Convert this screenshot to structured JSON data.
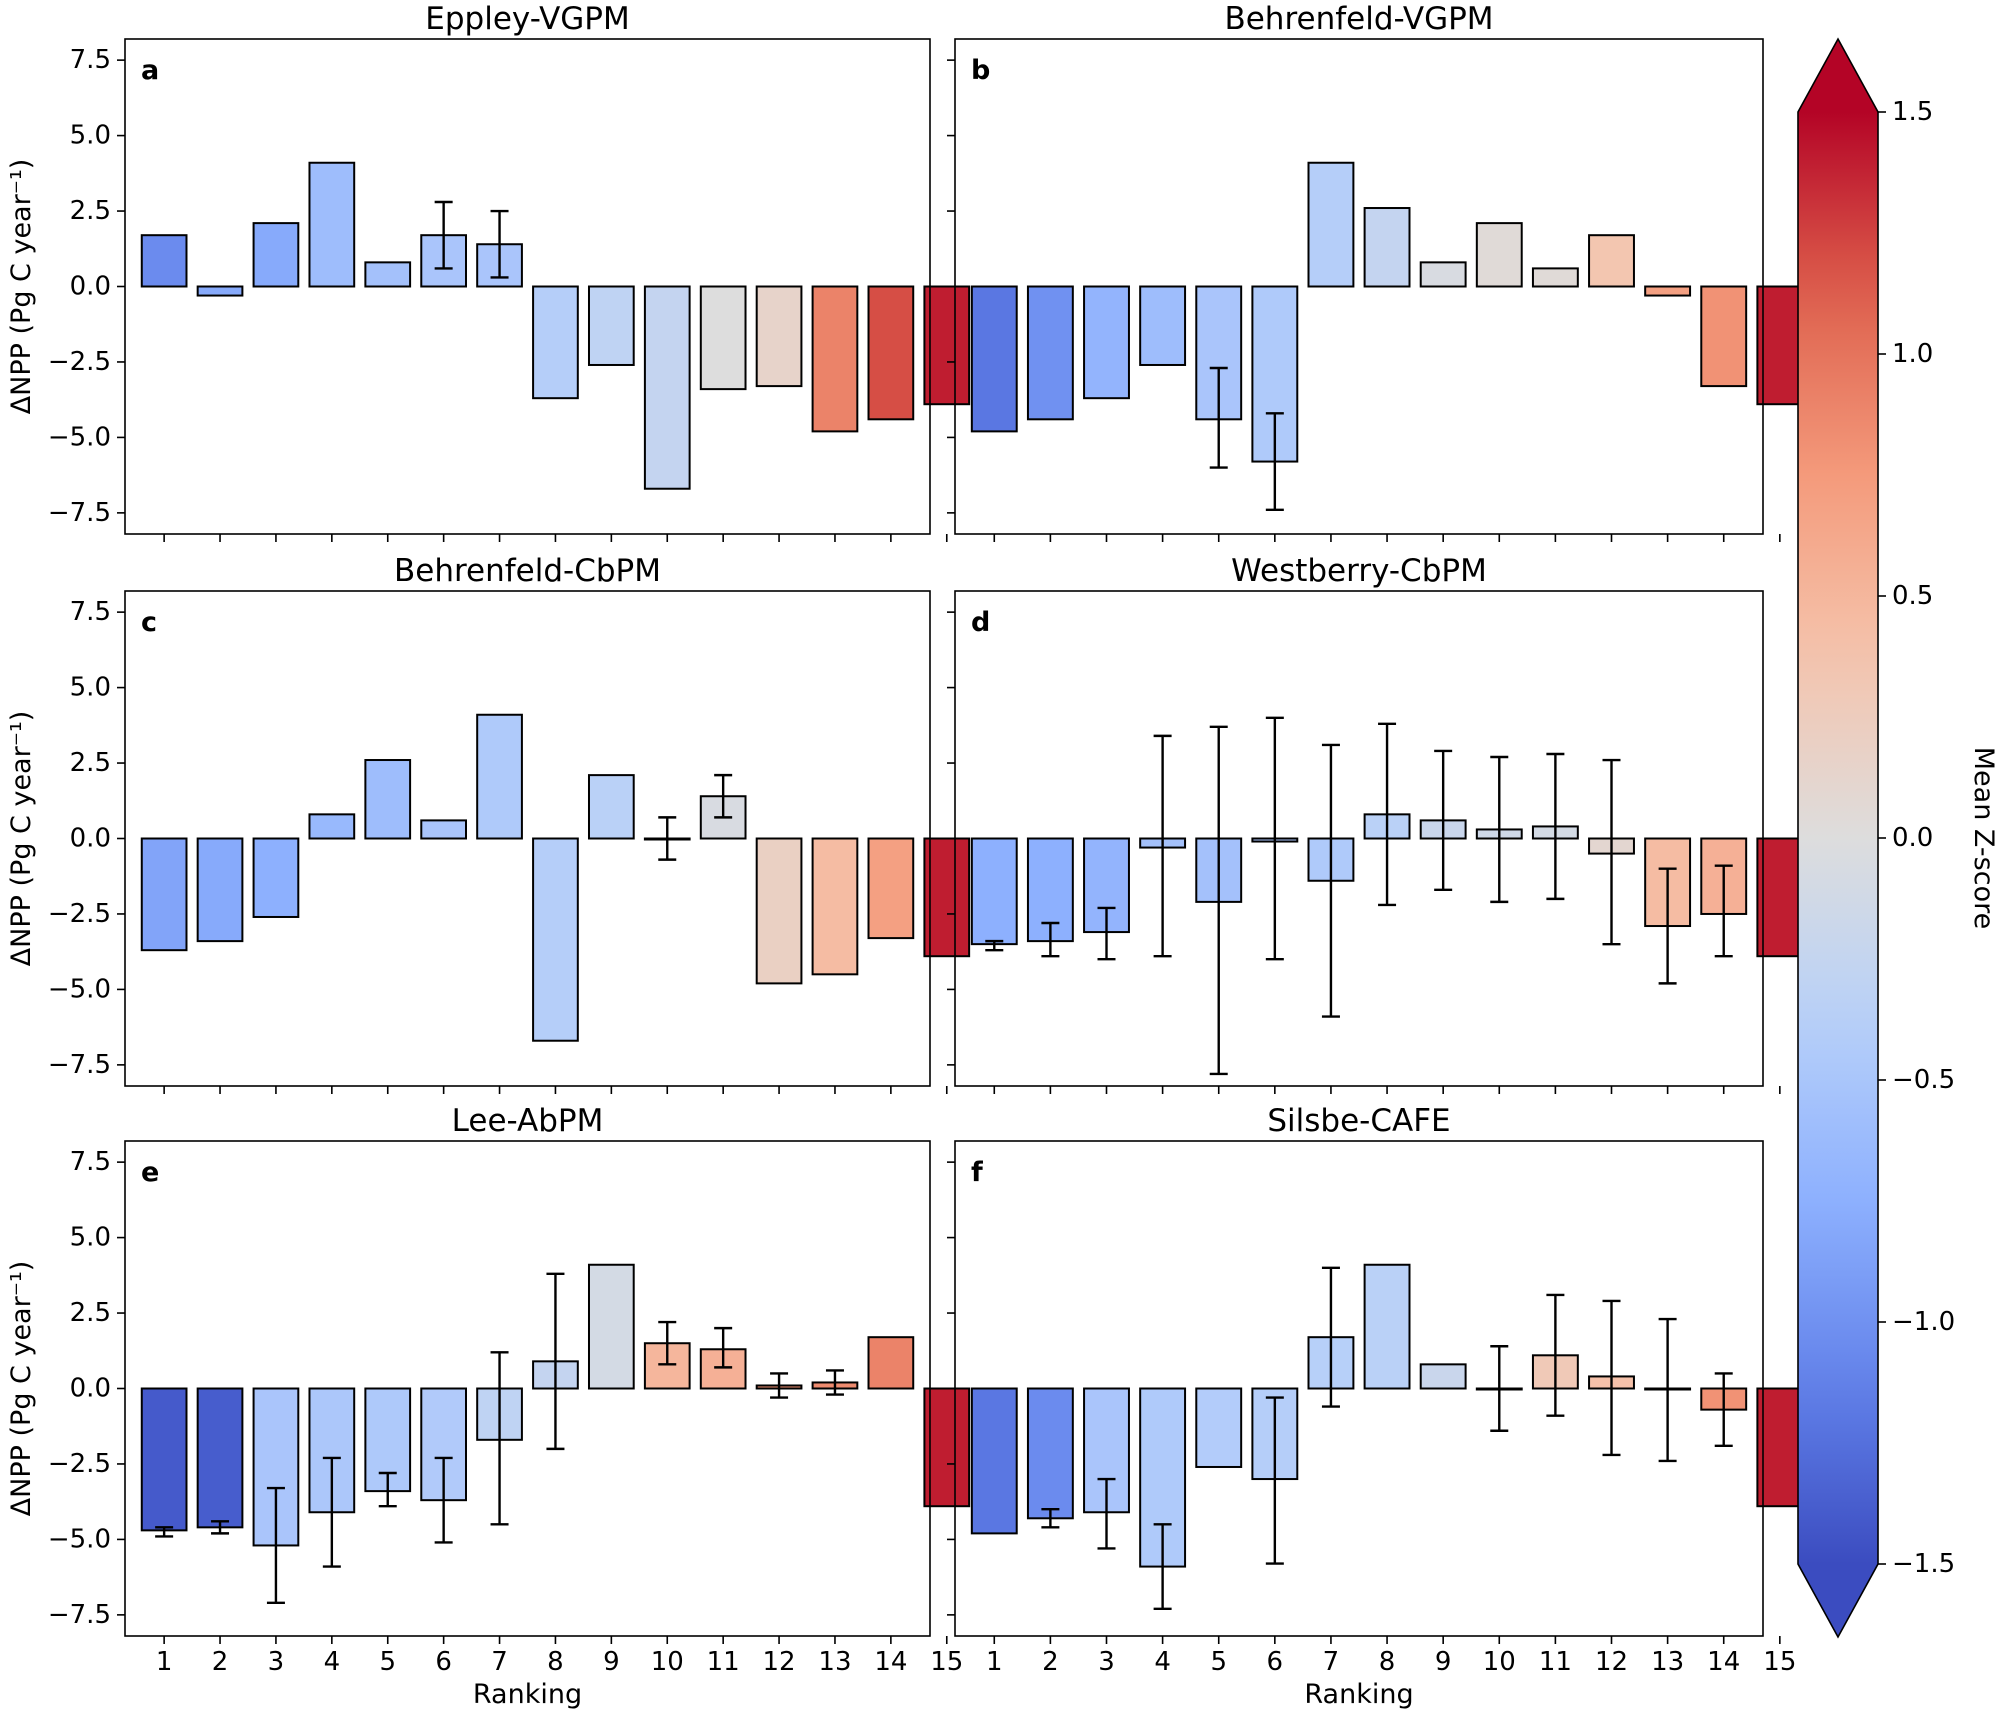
{
  "figure": {
    "colorbar": {
      "label": "Mean Z-score",
      "range": [
        -1.5,
        1.5
      ],
      "ticks": [
        "1.5",
        "1.0",
        "0.5",
        "0.0",
        "−0.5",
        "−1.0",
        "−1.5"
      ],
      "tick_values": [
        1.5,
        1.0,
        0.5,
        0.0,
        -0.5,
        -1.0,
        -1.5
      ],
      "extend": "both",
      "colormap": "coolwarm"
    }
  },
  "chart_data": [
    {
      "type": "bar",
      "panel": "a",
      "title": "Eppley-VGPM",
      "xlabel": "",
      "ylabel": "ΔNPP (Pg C year⁻¹)",
      "categories": [
        "1",
        "2",
        "3",
        "4",
        "5",
        "6",
        "7",
        "8",
        "9",
        "10",
        "11",
        "12",
        "13",
        "14",
        "15"
      ],
      "values": [
        1.7,
        -0.3,
        2.1,
        4.1,
        0.8,
        1.7,
        1.4,
        -3.7,
        -2.6,
        -6.7,
        -3.4,
        -3.3,
        -4.8,
        -4.4,
        -3.9
      ],
      "zscores": [
        -1.05,
        -0.8,
        -0.8,
        -0.6,
        -0.55,
        -0.5,
        -0.5,
        -0.4,
        -0.3,
        -0.25,
        0.0,
        0.15,
        0.9,
        1.2,
        1.4
      ],
      "error_bars": [
        null,
        null,
        null,
        null,
        null,
        [
          0.6,
          2.8
        ],
        [
          0.3,
          2.5
        ],
        null,
        null,
        null,
        null,
        null,
        null,
        null,
        null
      ],
      "ylim": [
        -8.2,
        8.2
      ],
      "yticks": [
        -7.5,
        -5.0,
        -2.5,
        0.0,
        2.5,
        5.0,
        7.5
      ],
      "ytick_labels": [
        "−7.5",
        "−5.0",
        "−2.5",
        "0.0",
        "2.5",
        "5.0",
        "7.5"
      ],
      "xtick_labels": [],
      "show_yticklabels": true
    },
    {
      "type": "bar",
      "panel": "b",
      "title": "Behrenfeld-VGPM",
      "xlabel": "",
      "ylabel": "",
      "categories": [
        "1",
        "2",
        "3",
        "4",
        "5",
        "6",
        "7",
        "8",
        "9",
        "10",
        "11",
        "12",
        "13",
        "14",
        "15"
      ],
      "values": [
        -4.8,
        -4.4,
        -3.7,
        -2.6,
        -4.4,
        -5.8,
        4.1,
        2.6,
        0.8,
        2.1,
        0.6,
        1.7,
        -0.3,
        -3.3,
        -3.9
      ],
      "zscores": [
        -1.2,
        -1.0,
        -0.7,
        -0.6,
        -0.5,
        -0.45,
        -0.4,
        -0.25,
        -0.05,
        0.05,
        0.05,
        0.35,
        0.7,
        0.8,
        1.4
      ],
      "error_bars": [
        null,
        null,
        null,
        null,
        [
          -6.0,
          -2.7
        ],
        [
          -7.4,
          -4.2
        ],
        null,
        null,
        null,
        null,
        null,
        null,
        null,
        null,
        null
      ],
      "ylim": [
        -8.2,
        8.2
      ],
      "yticks": [
        -7.5,
        -5.0,
        -2.5,
        0.0,
        2.5,
        5.0,
        7.5
      ],
      "ytick_labels": [],
      "xtick_labels": [],
      "show_yticklabels": false
    },
    {
      "type": "bar",
      "panel": "c",
      "title": "Behrenfeld-CbPM",
      "xlabel": "",
      "ylabel": "ΔNPP (Pg C year⁻¹)",
      "categories": [
        "1",
        "2",
        "3",
        "4",
        "5",
        "6",
        "7",
        "8",
        "9",
        "10",
        "11",
        "12",
        "13",
        "14",
        "15"
      ],
      "values": [
        -3.7,
        -3.4,
        -2.6,
        0.8,
        2.6,
        0.6,
        4.1,
        -6.7,
        2.1,
        0.0,
        1.4,
        -4.8,
        -4.5,
        -3.3,
        -3.9
      ],
      "zscores": [
        -0.85,
        -0.8,
        -0.75,
        -0.65,
        -0.6,
        -0.5,
        -0.45,
        -0.4,
        -0.35,
        -0.1,
        -0.05,
        0.2,
        0.45,
        0.7,
        1.4
      ],
      "error_bars": [
        null,
        null,
        null,
        null,
        null,
        null,
        null,
        null,
        null,
        [
          -0.7,
          0.7
        ],
        [
          0.7,
          2.1
        ],
        null,
        null,
        null,
        null
      ],
      "ylim": [
        -8.2,
        8.2
      ],
      "yticks": [
        -7.5,
        -5.0,
        -2.5,
        0.0,
        2.5,
        5.0,
        7.5
      ],
      "ytick_labels": [
        "−7.5",
        "−5.0",
        "−2.5",
        "0.0",
        "2.5",
        "5.0",
        "7.5"
      ],
      "xtick_labels": [],
      "show_yticklabels": true
    },
    {
      "type": "bar",
      "panel": "d",
      "title": "Westberry-CbPM",
      "xlabel": "",
      "ylabel": "",
      "categories": [
        "1",
        "2",
        "3",
        "4",
        "5",
        "6",
        "7",
        "8",
        "9",
        "10",
        "11",
        "12",
        "13",
        "14",
        "15"
      ],
      "values": [
        -3.5,
        -3.4,
        -3.1,
        -0.3,
        -2.1,
        -0.1,
        -1.4,
        0.8,
        0.6,
        0.3,
        0.4,
        -0.5,
        -2.9,
        -2.5,
        -3.9
      ],
      "zscores": [
        -0.75,
        -0.75,
        -0.7,
        -0.55,
        -0.55,
        -0.5,
        -0.45,
        -0.35,
        -0.2,
        -0.15,
        -0.1,
        0.1,
        0.45,
        0.55,
        1.4
      ],
      "error_bars": [
        [
          -3.7,
          -3.4
        ],
        [
          -3.9,
          -2.8
        ],
        [
          -4.0,
          -2.3
        ],
        [
          -3.9,
          3.4
        ],
        [
          -7.8,
          3.7
        ],
        [
          -4.0,
          4.0
        ],
        [
          -5.9,
          3.1
        ],
        [
          -2.2,
          3.8
        ],
        [
          -1.7,
          2.9
        ],
        [
          -2.1,
          2.7
        ],
        [
          -2.0,
          2.8
        ],
        [
          -3.5,
          2.6
        ],
        [
          -4.8,
          -1.0
        ],
        [
          -3.9,
          -0.9
        ],
        null
      ],
      "ylim": [
        -8.2,
        8.2
      ],
      "yticks": [
        -7.5,
        -5.0,
        -2.5,
        0.0,
        2.5,
        5.0,
        7.5
      ],
      "ytick_labels": [],
      "xtick_labels": [],
      "show_yticklabels": false
    },
    {
      "type": "bar",
      "panel": "e",
      "title": "Lee-AbPM",
      "xlabel": "Ranking",
      "ylabel": "ΔNPP (Pg C year⁻¹)",
      "categories": [
        "1",
        "2",
        "3",
        "4",
        "5",
        "6",
        "7",
        "8",
        "9",
        "10",
        "11",
        "12",
        "13",
        "14",
        "15"
      ],
      "values": [
        -4.7,
        -4.6,
        -5.2,
        -4.1,
        -3.4,
        -3.7,
        -1.7,
        0.9,
        4.1,
        1.5,
        1.3,
        0.1,
        0.2,
        1.7,
        -3.9
      ],
      "zscores": [
        -1.4,
        -1.38,
        -0.5,
        -0.48,
        -0.46,
        -0.44,
        -0.3,
        -0.25,
        -0.1,
        0.5,
        0.55,
        0.8,
        0.85,
        0.9,
        1.4
      ],
      "error_bars": [
        [
          -4.9,
          -4.6
        ],
        [
          -4.8,
          -4.4
        ],
        [
          -7.1,
          -3.3
        ],
        [
          -5.9,
          -2.3
        ],
        [
          -3.9,
          -2.8
        ],
        [
          -5.1,
          -2.3
        ],
        [
          -4.5,
          1.2
        ],
        [
          -2.0,
          3.8
        ],
        null,
        [
          0.8,
          2.2
        ],
        [
          0.7,
          2.0
        ],
        [
          -0.3,
          0.5
        ],
        [
          -0.2,
          0.6
        ],
        null,
        null
      ],
      "ylim": [
        -8.2,
        8.2
      ],
      "yticks": [
        -7.5,
        -5.0,
        -2.5,
        0.0,
        2.5,
        5.0,
        7.5
      ],
      "ytick_labels": [
        "−7.5",
        "−5.0",
        "−2.5",
        "0.0",
        "2.5",
        "5.0",
        "7.5"
      ],
      "xtick_labels": [
        "1",
        "2",
        "3",
        "4",
        "5",
        "6",
        "7",
        "8",
        "9",
        "10",
        "11",
        "12",
        "13",
        "14",
        "15"
      ],
      "show_yticklabels": true
    },
    {
      "type": "bar",
      "panel": "f",
      "title": "Silsbe-CAFE",
      "xlabel": "Ranking",
      "ylabel": "",
      "categories": [
        "1",
        "2",
        "3",
        "4",
        "5",
        "6",
        "7",
        "8",
        "9",
        "10",
        "11",
        "12",
        "13",
        "14",
        "15"
      ],
      "values": [
        -4.8,
        -4.3,
        -4.1,
        -5.9,
        -2.6,
        -3.0,
        1.7,
        4.1,
        0.8,
        0.0,
        1.1,
        0.4,
        0.0,
        -0.7,
        -3.9
      ],
      "zscores": [
        -1.2,
        -1.05,
        -0.5,
        -0.45,
        -0.42,
        -0.4,
        -0.38,
        -0.35,
        -0.2,
        0.0,
        0.3,
        0.4,
        0.6,
        0.8,
        1.4
      ],
      "error_bars": [
        null,
        [
          -4.6,
          -4.0
        ],
        [
          -5.3,
          -3.0
        ],
        [
          -7.3,
          -4.5
        ],
        null,
        [
          -5.8,
          -0.3
        ],
        [
          -0.6,
          4.0
        ],
        null,
        null,
        [
          -1.4,
          1.4
        ],
        [
          -0.9,
          3.1
        ],
        [
          -2.2,
          2.9
        ],
        [
          -2.4,
          2.3
        ],
        [
          -1.9,
          0.5
        ],
        null
      ],
      "ylim": [
        -8.2,
        8.2
      ],
      "yticks": [
        -7.5,
        -5.0,
        -2.5,
        0.0,
        2.5,
        5.0,
        7.5
      ],
      "ytick_labels": [],
      "xtick_labels": [
        "1",
        "2",
        "3",
        "4",
        "5",
        "6",
        "7",
        "8",
        "9",
        "10",
        "11",
        "12",
        "13",
        "14",
        "15"
      ],
      "show_yticklabels": false
    }
  ]
}
